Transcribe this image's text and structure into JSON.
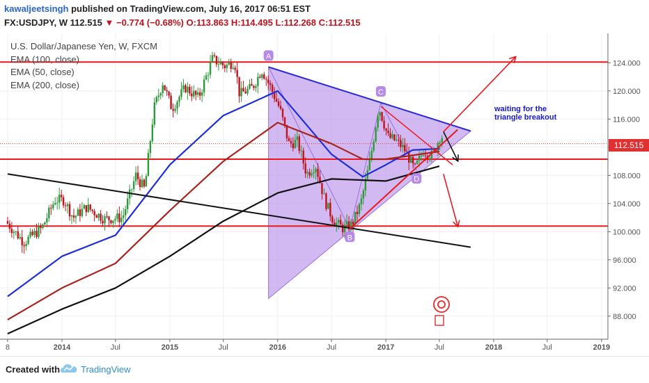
{
  "header": {
    "author": "kawaljeetsingh",
    "published": " published on TradingView.com, July 16, 2017 06:51 EST",
    "symbol": "FX:USDJPY, W",
    "price": "112.515",
    "change": "▼ −0.774 (−0.68%)",
    "open": "O:113.863",
    "high": "H:114.495",
    "low": "L:112.268",
    "close": "C:112.515"
  },
  "legend": {
    "title": "U.S. Dollar/Japanese Yen, W, FXCM",
    "ema100": "EMA (100, close)",
    "ema50": "EMA (50, close)",
    "ema200": "EMA (200, close)"
  },
  "annotation": {
    "line1": "waiting for the",
    "line2": "triangle breakout"
  },
  "footer": {
    "created": "Created with",
    "brand": "TradingView"
  },
  "colors": {
    "candle_up": "#2d9a3a",
    "candle_down": "#c0121c",
    "ema50": "#1c2ed6",
    "ema100": "#a8231c",
    "ema200": "#111111",
    "support_line": "#e8191e",
    "triangle_fill": "#b58ae8",
    "annotation": "#1a1acc"
  },
  "chart_data": {
    "type": "candlestick",
    "timeframe": "weekly",
    "symbol": "FX:USDJPY",
    "y_axis": {
      "range": [
        85,
        127
      ],
      "ticks": [
        "124.000",
        "120.000",
        "116.000",
        "112.000",
        "108.000",
        "104.000",
        "100.000",
        "96.000",
        "92.000",
        "88.000"
      ]
    },
    "x_axis": {
      "ticks": [
        "8",
        "2014",
        "Jul",
        "2015",
        "Jul",
        "2016",
        "Jul",
        "2017",
        "Jul",
        "2018",
        "Jul",
        "2019"
      ]
    },
    "last_price": "112.515",
    "horizontal_levels": [
      124.1,
      110.3,
      100.8
    ],
    "price_path": [
      [
        "2013-07-01",
        101.5
      ],
      [
        "2013-09-01",
        98.5
      ],
      [
        "2013-11-01",
        100.5
      ],
      [
        "2013-12-15",
        104.5
      ],
      [
        "2014-01-15",
        104.5
      ],
      [
        "2014-02-15",
        102
      ],
      [
        "2014-04-01",
        103.5
      ],
      [
        "2014-06-01",
        101.8
      ],
      [
        "2014-08-01",
        102
      ],
      [
        "2014-09-15",
        108
      ],
      [
        "2014-10-15",
        106
      ],
      [
        "2014-11-15",
        117.5
      ],
      [
        "2014-12-15",
        121.2
      ],
      [
        "2015-01-15",
        117.5
      ],
      [
        "2015-03-01",
        120.5
      ],
      [
        "2015-04-15",
        119
      ],
      [
        "2015-06-01",
        124.5
      ],
      [
        "2015-07-15",
        123.5
      ],
      [
        "2015-08-15",
        124.2
      ],
      [
        "2015-09-01",
        119.5
      ],
      [
        "2015-10-15",
        120.5
      ],
      [
        "2015-11-15",
        123
      ],
      [
        "2015-12-15",
        120.5
      ],
      [
        "2016-01-15",
        117.5
      ],
      [
        "2016-02-15",
        112.5
      ],
      [
        "2016-03-15",
        112.8
      ],
      [
        "2016-04-15",
        108.2
      ],
      [
        "2016-05-15",
        109.5
      ],
      [
        "2016-06-15",
        104.5
      ],
      [
        "2016-07-15",
        101.5
      ],
      [
        "2016-08-15",
        100.5
      ],
      [
        "2016-09-15",
        101
      ],
      [
        "2016-10-15",
        104
      ],
      [
        "2016-11-15",
        110
      ],
      [
        "2016-12-15",
        117.8
      ],
      [
        "2017-01-15",
        113.5
      ],
      [
        "2017-02-15",
        112.8
      ],
      [
        "2017-03-15",
        111.5
      ],
      [
        "2017-04-15",
        108.8
      ],
      [
        "2017-05-15",
        111.5
      ],
      [
        "2017-06-15",
        110.8
      ],
      [
        "2017-07-10",
        113.5
      ]
    ],
    "series": [
      {
        "name": "EMA (50, close)",
        "points": [
          [
            "2013-07-01",
            90.8
          ],
          [
            "2014-01-01",
            96.5
          ],
          [
            "2014-07-01",
            99.5
          ],
          [
            "2015-01-01",
            109.5
          ],
          [
            "2015-07-01",
            116.5
          ],
          [
            "2016-01-01",
            120
          ],
          [
            "2016-07-01",
            111
          ],
          [
            "2016-10-15",
            107.8
          ],
          [
            "2017-01-01",
            109.5
          ],
          [
            "2017-04-01",
            111.6
          ],
          [
            "2017-07-01",
            111.8
          ]
        ]
      },
      {
        "name": "EMA (100, close)",
        "points": [
          [
            "2013-07-01",
            87.5
          ],
          [
            "2014-01-01",
            92
          ],
          [
            "2014-07-01",
            95.5
          ],
          [
            "2015-01-01",
            103
          ],
          [
            "2015-07-01",
            110
          ],
          [
            "2016-01-01",
            115.5
          ],
          [
            "2016-07-01",
            112.5
          ],
          [
            "2016-10-15",
            110.3
          ],
          [
            "2017-01-01",
            110.3
          ],
          [
            "2017-07-01",
            111.4
          ]
        ]
      },
      {
        "name": "EMA (200, close)",
        "points": [
          [
            "2013-07-01",
            85.5
          ],
          [
            "2014-01-01",
            89
          ],
          [
            "2014-07-01",
            92
          ],
          [
            "2015-01-01",
            96.5
          ],
          [
            "2015-07-01",
            101.5
          ],
          [
            "2016-01-01",
            105.5
          ],
          [
            "2016-07-01",
            107.5
          ],
          [
            "2017-01-01",
            107.2
          ],
          [
            "2017-07-01",
            109.3
          ]
        ]
      }
    ],
    "trendlines": [
      {
        "name": "long-term",
        "points": [
          [
            "2013-07-01",
            108.2
          ],
          [
            "2017-10-15",
            97.8
          ]
        ]
      },
      {
        "name": "triangle-upper",
        "points": [
          [
            "2015-12-01",
            123.4
          ],
          [
            "2017-10-15",
            114.3
          ]
        ]
      },
      {
        "name": "triangle-lower",
        "points": [
          [
            "2016-09-01",
            100.4
          ],
          [
            "2017-09-01",
            114.5
          ]
        ]
      }
    ],
    "pattern_points": [
      {
        "label": "A",
        "date": "2015-12-01",
        "price": 123.4
      },
      {
        "label": "B",
        "date": "2016-09-01",
        "price": 100.4
      },
      {
        "label": "C",
        "date": "2016-12-15",
        "price": 118.3
      },
      {
        "label": "D",
        "date": "2017-04-15",
        "price": 108.7
      }
    ],
    "projection_arrows": [
      {
        "from": [
          "2017-07-15",
          114.2
        ],
        "to": [
          "2018-03-15",
          124.8
        ],
        "color": "#e8191e"
      },
      {
        "from": [
          "2017-07-15",
          114.2
        ],
        "to": [
          "2017-09-01",
          110.1
        ],
        "color": "#111111"
      },
      {
        "from": [
          "2017-07-15",
          108.2
        ],
        "to": [
          "2017-09-01",
          100.8
        ],
        "color": "#e8191e"
      }
    ]
  }
}
